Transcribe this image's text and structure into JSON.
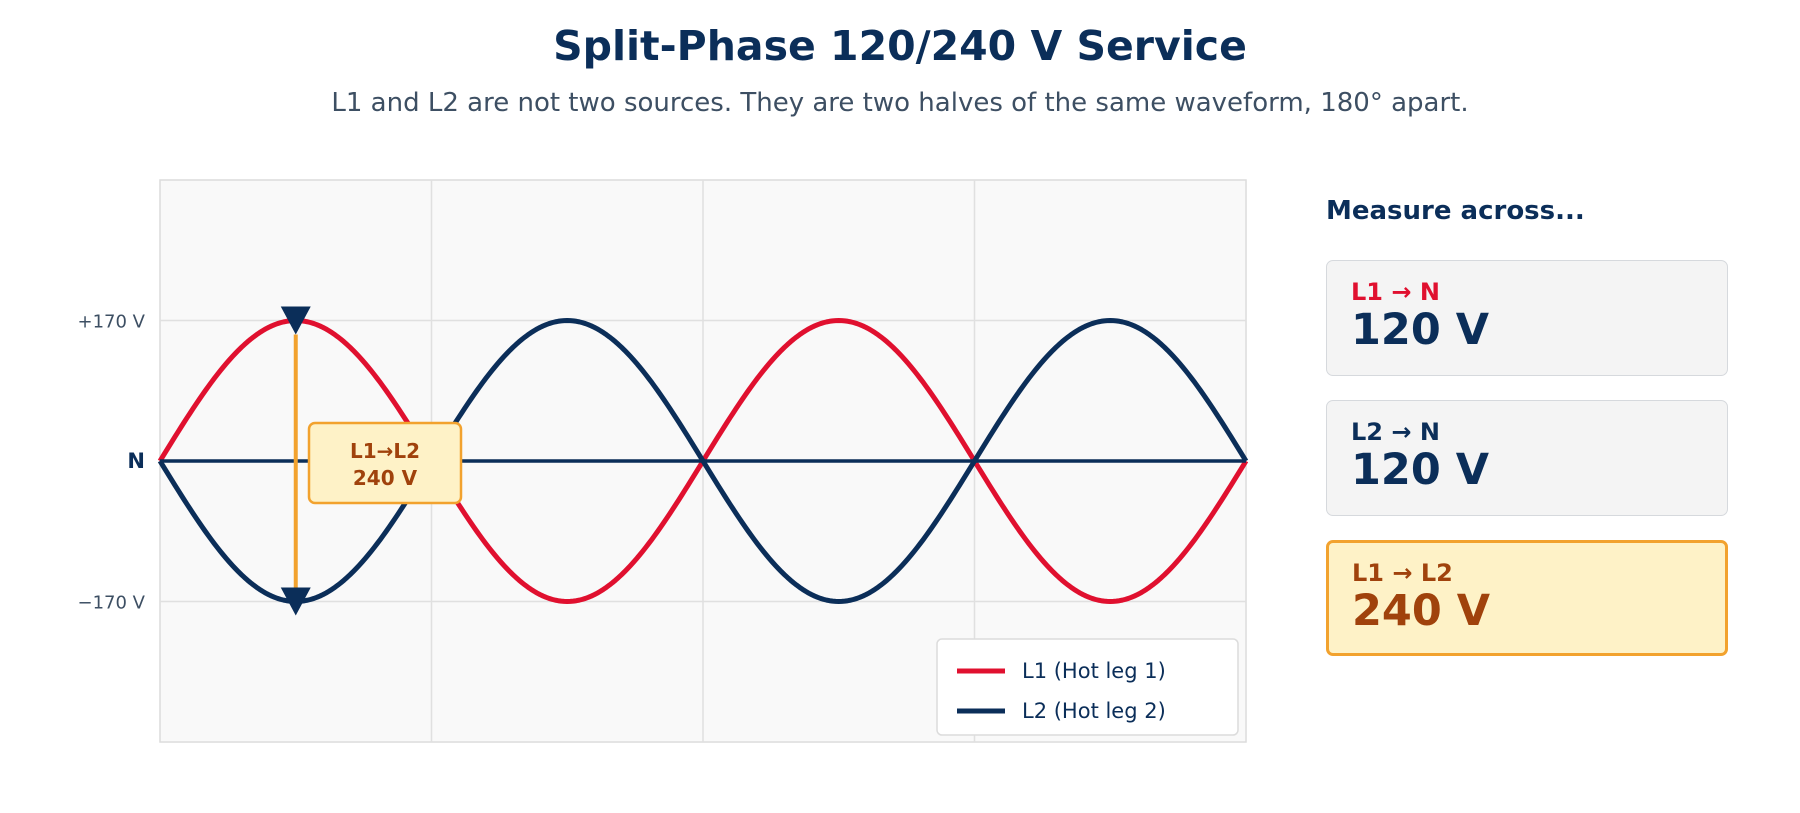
{
  "header": {
    "title": "Split-Phase 120/240 V Service",
    "subtitle": "L1 and L2 are not two sources. They are two halves of the same waveform, 180° apart."
  },
  "chart_data": {
    "type": "line",
    "y_tick_labels": [
      "+170 V",
      "N",
      "−170 V"
    ],
    "y_ticks": [
      170,
      0,
      -170
    ],
    "ylim": [
      -340,
      340
    ],
    "xlim": [
      0,
      720
    ],
    "grid": true,
    "series": [
      {
        "name": "L1 (Hot leg 1)",
        "color": "#e0102f",
        "amplitude": 170,
        "phase_deg": 0
      },
      {
        "name": "L2 (Hot leg 2)",
        "color": "#0b2e59",
        "amplitude": 170,
        "phase_deg": 180
      }
    ],
    "neutral_line_value": 0,
    "annotation": {
      "text_line1": "L1→L2",
      "text_line2": "240 V",
      "x_deg": 90,
      "from_value": 170,
      "to_value": -170,
      "color": "#f2a22e"
    },
    "legend_position": "bottom-right"
  },
  "side_panel": {
    "heading": "Measure across...",
    "cards": [
      {
        "label": "L1 → N",
        "value": "120 V",
        "label_color": "#e0102f",
        "value_color": "#0b2e59"
      },
      {
        "label": "L2 → N",
        "value": "120 V",
        "label_color": "#0b2e59",
        "value_color": "#0b2e59"
      },
      {
        "label": "L1 → L2",
        "value": "240 V",
        "label_color": "#a0420c",
        "value_color": "#a0420c"
      }
    ]
  }
}
